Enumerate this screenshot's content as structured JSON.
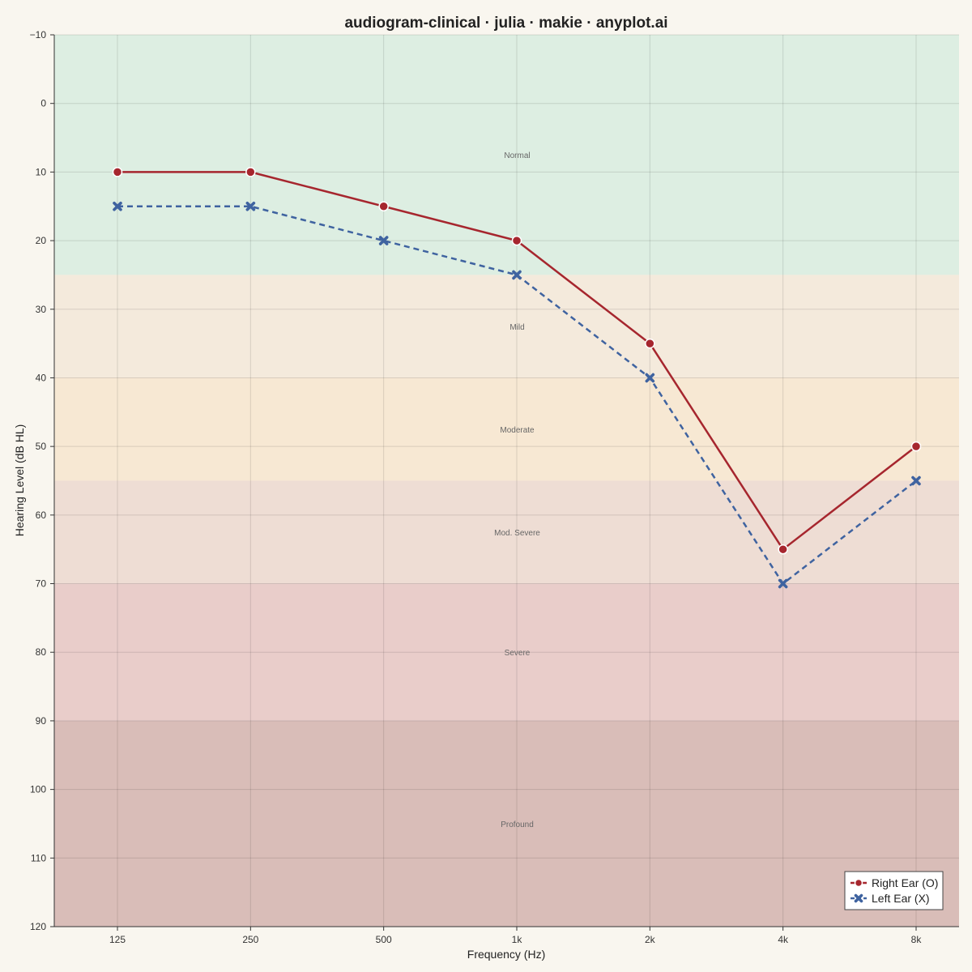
{
  "chart_data": {
    "type": "line",
    "title": "audiogram-clinical · julia · makie · anyplot.ai",
    "xlabel": "Frequency (Hz)",
    "ylabel": "Hearing Level (dB HL)",
    "categories": [
      "125",
      "250",
      "500",
      "1k",
      "2k",
      "4k",
      "8k"
    ],
    "y_axis": {
      "reversed": true,
      "range": [
        -10,
        120
      ],
      "ticks": [
        -10,
        0,
        10,
        20,
        30,
        40,
        50,
        60,
        70,
        80,
        90,
        100,
        110,
        120
      ]
    },
    "grid": true,
    "legend_position": "bottom-right",
    "bands": [
      {
        "label": "Normal",
        "from": -10,
        "to": 25,
        "color": "#ddeee2"
      },
      {
        "label": "Mild",
        "from": 25,
        "to": 40,
        "color": "#f4eadc"
      },
      {
        "label": "Moderate",
        "from": 40,
        "to": 55,
        "color": "#f7e8d3"
      },
      {
        "label": "Mod. Severe",
        "from": 55,
        "to": 70,
        "color": "#eeddd4"
      },
      {
        "label": "Severe",
        "from": 70,
        "to": 90,
        "color": "#e9cdca"
      },
      {
        "label": "Profound",
        "from": 90,
        "to": 120,
        "color": "#d9bdb8"
      }
    ],
    "series": [
      {
        "name": "Right Ear (O)",
        "values": [
          10,
          10,
          15,
          20,
          35,
          65,
          50
        ],
        "color": "#a6262e",
        "marker": "circle",
        "dash": "solid"
      },
      {
        "name": "Left Ear (X)",
        "values": [
          15,
          15,
          20,
          25,
          40,
          70,
          55
        ],
        "color": "#3f63a0",
        "marker": "x",
        "dash": "dashed"
      }
    ]
  }
}
